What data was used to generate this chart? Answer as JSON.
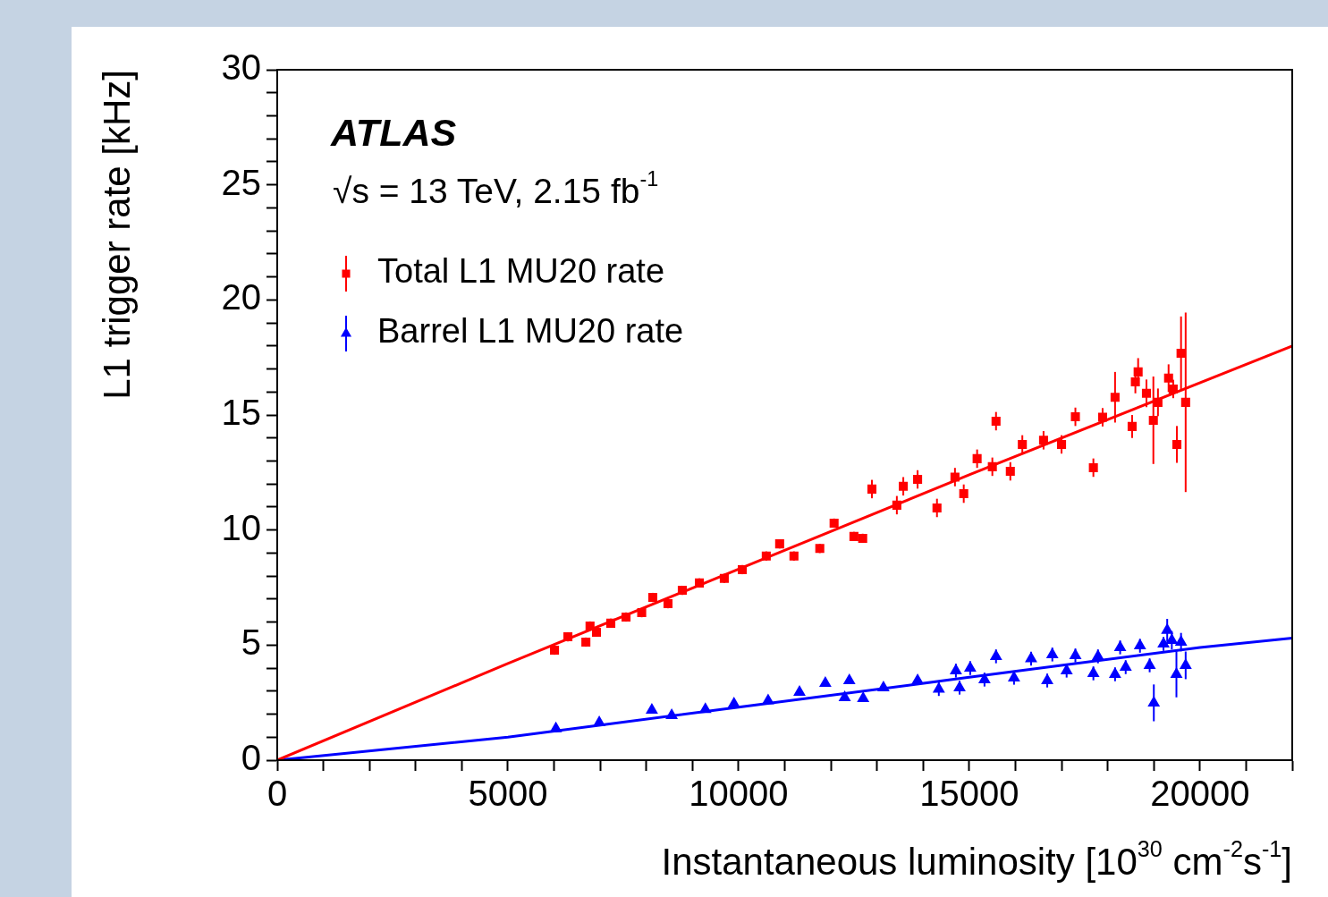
{
  "chart_data": {
    "type": "scatter",
    "xlabel": "Instantaneous luminosity [10$^{30}$ cm$^{-2}$s$^{-1}$]",
    "ylabel": "L1 trigger rate [kHz]",
    "annotations": [
      "ATLAS",
      "√s = 13 TeV, 2.15 fb$^{-1}$"
    ],
    "legend": "top left",
    "xlim": [
      0,
      22000
    ],
    "ylim": [
      0,
      30
    ],
    "xticks": [
      0,
      {
        "value": 1000,
        "label": null
      },
      {
        "value": 2000,
        "label": null
      },
      {
        "value": 3000,
        "label": null
      },
      {
        "value": 4000,
        "label": null
      },
      5000,
      {
        "value": 6000,
        "label": null
      },
      {
        "value": 7000,
        "label": null
      },
      {
        "value": 8000,
        "label": null
      },
      {
        "value": 9000,
        "label": null
      },
      10000,
      {
        "value": 11000,
        "label": null
      },
      {
        "value": 12000,
        "label": null
      },
      {
        "value": 13000,
        "label": null
      },
      {
        "value": 14000,
        "label": null
      },
      15000,
      {
        "value": 16000,
        "label": null
      },
      {
        "value": 17000,
        "label": null
      },
      {
        "value": 18000,
        "label": null
      },
      {
        "value": 19000,
        "label": null
      },
      20000,
      {
        "value": 21000,
        "label": null
      },
      {
        "value": 22000,
        "label": null
      }
    ],
    "yticks": [
      0,
      {
        "value": 1,
        "label": null
      },
      {
        "value": 2,
        "label": null
      },
      {
        "value": 3,
        "label": null
      },
      {
        "value": 4,
        "label": null
      },
      5,
      {
        "value": 6,
        "label": null
      },
      {
        "value": 7,
        "label": null
      },
      {
        "value": 8,
        "label": null
      },
      {
        "value": 9,
        "label": null
      },
      10,
      {
        "value": 11,
        "label": null
      },
      {
        "value": 12,
        "label": null
      },
      {
        "value": 13,
        "label": null
      },
      {
        "value": 14,
        "label": null
      },
      15,
      {
        "value": 16,
        "label": null
      },
      {
        "value": 17,
        "label": null
      },
      {
        "value": 18,
        "label": null
      },
      {
        "value": 19,
        "label": null
      },
      20,
      {
        "value": 21,
        "label": null
      },
      {
        "value": 22,
        "label": null
      },
      {
        "value": 23,
        "label": null
      },
      {
        "value": 24,
        "label": null
      },
      25,
      {
        "value": 26,
        "label": null
      },
      {
        "value": 27,
        "label": null
      },
      {
        "value": 28,
        "label": null
      },
      {
        "value": 29,
        "label": null
      },
      30
    ],
    "series": [
      {
        "name": "Total L1 MU20 rate",
        "type": "scatter",
        "color": "#ff0000",
        "marker": "square",
        "x": [
          6010,
          6300,
          6690,
          6780,
          6920,
          7230,
          7560,
          7900,
          8140,
          8470,
          8780,
          9150,
          9690,
          10080,
          10600,
          10890,
          11200,
          11760,
          12070,
          12500,
          12690,
          12890,
          13430,
          13570,
          13880,
          14300,
          14690,
          14880,
          15170,
          15500,
          15580,
          15890,
          16150,
          16610,
          17000,
          17300,
          17690,
          17890,
          18160,
          18530,
          18600,
          18660,
          18840,
          18990,
          19090,
          19320,
          19420,
          19500,
          19590,
          19690
        ],
        "values": [
          4.78,
          5.36,
          5.13,
          5.83,
          5.56,
          5.95,
          6.22,
          6.41,
          7.07,
          6.8,
          7.38,
          7.7,
          7.9,
          8.28,
          8.87,
          9.4,
          8.87,
          9.2,
          10.3,
          9.72,
          9.64,
          11.78,
          11.08,
          11.9,
          12.2,
          10.96,
          12.3,
          11.58,
          13.1,
          12.75,
          14.73,
          12.55,
          13.72,
          13.9,
          13.72,
          14.92,
          12.71,
          14.9,
          15.77,
          14.5,
          16.44,
          16.87,
          15.94,
          14.77,
          15.55,
          16.6,
          16.13,
          13.72,
          17.68,
          15.55
        ],
        "errors": [
          0.2,
          0.2,
          0.2,
          0.2,
          0.2,
          0.2,
          0.2,
          0.2,
          0.2,
          0.2,
          0.2,
          0.2,
          0.2,
          0.2,
          0.2,
          0.2,
          0.2,
          0.2,
          0.2,
          0.2,
          0.2,
          0.4,
          0.4,
          0.4,
          0.4,
          0.4,
          0.4,
          0.4,
          0.4,
          0.4,
          0.4,
          0.4,
          0.4,
          0.4,
          0.4,
          0.4,
          0.4,
          0.4,
          1.1,
          0.5,
          0.5,
          0.6,
          0.6,
          1.9,
          0.6,
          0.6,
          0.4,
          0.8,
          1.6,
          3.9
        ]
      },
      {
        "name": "Barrel L1 MU20 rate",
        "type": "scatter",
        "color": "#0000ff",
        "marker": "triangle",
        "x": [
          6040,
          6980,
          8120,
          8550,
          9280,
          9900,
          10640,
          11320,
          11880,
          12300,
          12400,
          12700,
          13140,
          13880,
          14340,
          14710,
          14790,
          15020,
          15330,
          15580,
          15970,
          16340,
          16690,
          16800,
          17110,
          17300,
          17690,
          17790,
          18160,
          18270,
          18390,
          18700,
          18910,
          19000,
          19210,
          19290,
          19390,
          19490,
          19590,
          19690
        ],
        "values": [
          1.37,
          1.63,
          2.18,
          1.94,
          2.21,
          2.45,
          2.58,
          2.95,
          3.34,
          2.72,
          3.46,
          2.68,
          3.15,
          3.46,
          3.09,
          3.89,
          3.15,
          4.0,
          3.5,
          4.51,
          3.58,
          4.41,
          3.46,
          4.59,
          3.89,
          4.55,
          3.77,
          4.51,
          3.73,
          4.9,
          4.04,
          4.97,
          4.12,
          2.49,
          5.05,
          5.64,
          5.21,
          3.73,
          5.13,
          4.12
        ],
        "errors": [
          0.15,
          0.15,
          0.15,
          0.15,
          0.15,
          0.15,
          0.15,
          0.15,
          0.15,
          0.15,
          0.15,
          0.15,
          0.15,
          0.15,
          0.3,
          0.3,
          0.3,
          0.3,
          0.3,
          0.3,
          0.3,
          0.3,
          0.3,
          0.3,
          0.3,
          0.3,
          0.3,
          0.3,
          0.3,
          0.3,
          0.3,
          0.3,
          0.3,
          0.8,
          0.3,
          0.5,
          0.4,
          1.0,
          0.4,
          0.6
        ]
      },
      {
        "type": "line",
        "color": "#ff0000",
        "marker": "none",
        "x": [
          0,
          5000,
          10000,
          15000,
          22000
        ],
        "values": [
          0,
          4.2,
          8.3,
          12.4,
          18.0
        ]
      },
      {
        "type": "line",
        "color": "#0000ff",
        "marker": "none",
        "x": [
          0,
          5000,
          10000,
          15000,
          20000,
          22000
        ],
        "values": [
          0,
          1.0,
          2.3,
          3.6,
          4.9,
          5.3
        ]
      }
    ]
  }
}
